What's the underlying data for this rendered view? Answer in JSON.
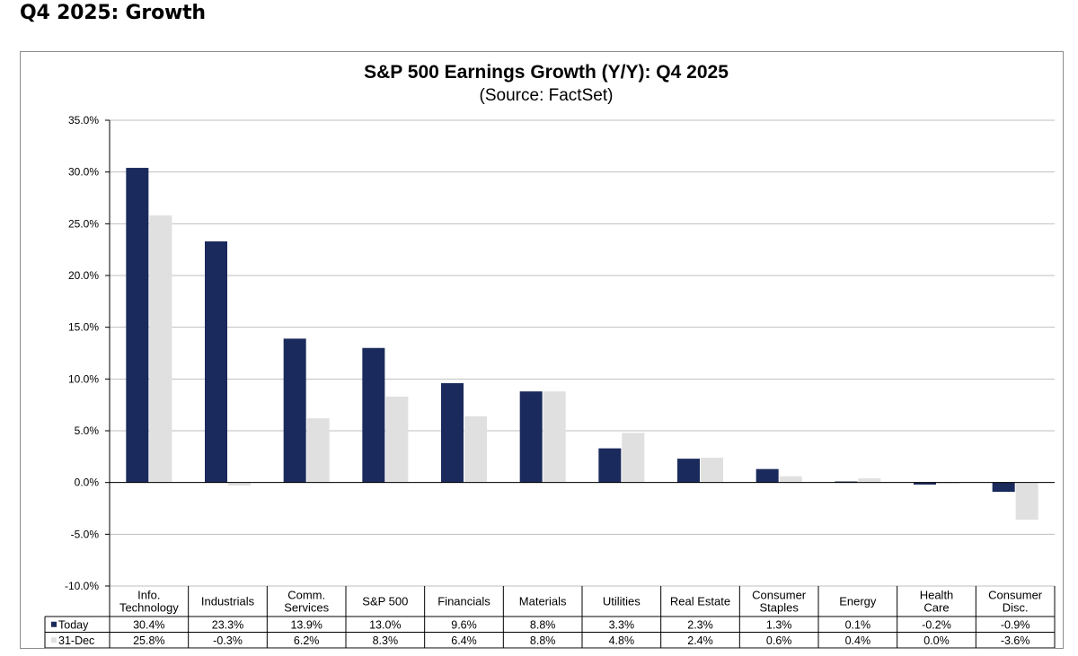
{
  "page": {
    "heading": "Q4 2025: Growth"
  },
  "colors": {
    "today": "#1b2a5c",
    "dec31": "#e0e0e0",
    "grid": "#bfbfbf",
    "axis": "#000000"
  },
  "chart_data": {
    "type": "bar",
    "title": "S&P 500 Earnings Growth (Y/Y): Q4 2025",
    "subtitle": "(Source: FactSet)",
    "categories": [
      [
        "Info.",
        "Technology"
      ],
      [
        "Industrials"
      ],
      [
        "Comm.",
        "Services"
      ],
      [
        "S&P 500"
      ],
      [
        "Financials"
      ],
      [
        "Materials"
      ],
      [
        "Utilities"
      ],
      [
        "Real Estate"
      ],
      [
        "Consumer",
        "Staples"
      ],
      [
        "Energy"
      ],
      [
        "Health",
        "Care"
      ],
      [
        "Consumer",
        "Disc."
      ]
    ],
    "series": [
      {
        "name": "Today",
        "values": [
          30.4,
          23.3,
          13.9,
          13.0,
          9.6,
          8.8,
          3.3,
          2.3,
          1.3,
          0.1,
          -0.2,
          -0.9
        ],
        "labels": [
          "30.4%",
          "23.3%",
          "13.9%",
          "13.0%",
          "9.6%",
          "8.8%",
          "3.3%",
          "2.3%",
          "1.3%",
          "0.1%",
          "-0.2%",
          "-0.9%"
        ]
      },
      {
        "name": "31-Dec",
        "values": [
          25.8,
          -0.3,
          6.2,
          8.3,
          6.4,
          8.8,
          4.8,
          2.4,
          0.6,
          0.4,
          0.0,
          -3.6
        ],
        "labels": [
          "25.8%",
          "-0.3%",
          "6.2%",
          "8.3%",
          "6.4%",
          "8.8%",
          "4.8%",
          "2.4%",
          "0.6%",
          "0.4%",
          "0.0%",
          "-3.6%"
        ]
      }
    ],
    "ylim": [
      -10,
      35
    ],
    "yticks": [
      35,
      30,
      25,
      20,
      15,
      10,
      5,
      0,
      -5,
      -10
    ],
    "ytick_labels": [
      "35.0%",
      "30.0%",
      "25.0%",
      "20.0%",
      "15.0%",
      "10.0%",
      "5.0%",
      "0.0%",
      "-5.0%",
      "-10.0%"
    ],
    "grid": true,
    "legend": "data-table"
  }
}
